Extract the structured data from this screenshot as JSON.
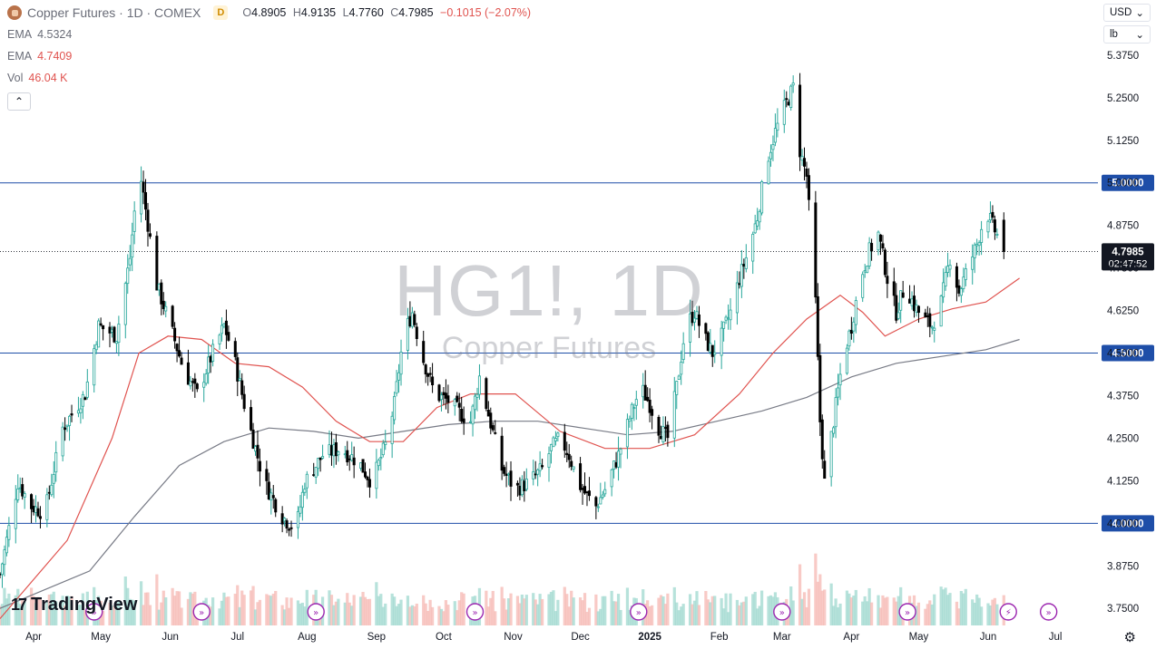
{
  "header": {
    "title": "Copper Futures · 1D · COMEX",
    "badge": "D",
    "ohlc": {
      "o_label": "O",
      "o": "4.8905",
      "h_label": "H",
      "h": "4.9135",
      "l_label": "L",
      "l": "4.7760",
      "c_label": "C",
      "c": "4.7985",
      "change": "−0.1015 (−2.07%)"
    }
  },
  "indicators": [
    {
      "label": "EMA",
      "value": "4.5324",
      "color": "#787b86"
    },
    {
      "label": "EMA",
      "value": "4.7409",
      "color": "#e0534f"
    },
    {
      "label": "Vol",
      "value": "46.04 K",
      "color": "#e0534f"
    }
  ],
  "selectors": {
    "currency": "USD",
    "unit": "lb"
  },
  "watermark": {
    "symbol": "HG1!, 1D",
    "name": "Copper Futures"
  },
  "branding": {
    "logo_text": "TradingView",
    "logo_mark": "17"
  },
  "colors": {
    "up": "#26a69a",
    "down": "#000000",
    "ema50": "#e0534f",
    "ema200": "#787b86",
    "hline": "#1e4ea8",
    "vol_up": "#9fd8cf",
    "vol_down": "#f5b8b3"
  },
  "chart_data": {
    "type": "candlestick",
    "symbol": "HG1!",
    "interval": "1D",
    "y_axis": {
      "ticks": [
        3.75,
        3.875,
        4.0,
        4.125,
        4.25,
        4.375,
        4.5,
        4.625,
        4.75,
        4.875,
        5.0,
        5.125,
        5.25,
        5.375
      ],
      "tick_labels": [
        "3.7500",
        "3.8750",
        "4.0000",
        "4.1250",
        "4.2500",
        "4.3750",
        "4.5000",
        "4.6250",
        "4.7500",
        "4.8750",
        "5.0000",
        "5.1250",
        "5.2500",
        "5.3750"
      ],
      "range": [
        3.7,
        5.42
      ]
    },
    "x_axis": {
      "labels": [
        "Apr",
        "May",
        "Jun",
        "Jul",
        "Aug",
        "Sep",
        "Oct",
        "Nov",
        "Dec",
        "2025",
        "Feb",
        "Mar",
        "Apr",
        "May",
        "Jun",
        "Jul"
      ],
      "label_days": [
        15,
        45,
        76,
        106,
        137,
        168,
        198,
        229,
        259,
        290,
        321,
        349,
        380,
        410,
        441,
        471
      ]
    },
    "horizontal_lines": [
      {
        "price": 5.0,
        "label": "5.0000"
      },
      {
        "price": 4.5,
        "label": "4.5000"
      },
      {
        "price": 4.0,
        "label": "4.0000"
      }
    ],
    "last_price": {
      "price": 4.7985,
      "label": "4.7985",
      "countdown": "02:47:52"
    },
    "ema_fast": [
      [
        0,
        3.72
      ],
      [
        30,
        3.95
      ],
      [
        50,
        4.25
      ],
      [
        62,
        4.5
      ],
      [
        75,
        4.55
      ],
      [
        90,
        4.54
      ],
      [
        105,
        4.47
      ],
      [
        120,
        4.46
      ],
      [
        135,
        4.4
      ],
      [
        150,
        4.3
      ],
      [
        165,
        4.24
      ],
      [
        180,
        4.24
      ],
      [
        195,
        4.34
      ],
      [
        210,
        4.38
      ],
      [
        230,
        4.38
      ],
      [
        250,
        4.27
      ],
      [
        270,
        4.22
      ],
      [
        290,
        4.22
      ],
      [
        310,
        4.26
      ],
      [
        330,
        4.38
      ],
      [
        345,
        4.5
      ],
      [
        360,
        4.6
      ],
      [
        375,
        4.67
      ],
      [
        385,
        4.62
      ],
      [
        395,
        4.55
      ],
      [
        410,
        4.6
      ],
      [
        425,
        4.63
      ],
      [
        440,
        4.65
      ],
      [
        455,
        4.72
      ]
    ],
    "ema_slow": [
      [
        0,
        3.75
      ],
      [
        40,
        3.86
      ],
      [
        60,
        4.02
      ],
      [
        80,
        4.17
      ],
      [
        100,
        4.24
      ],
      [
        120,
        4.28
      ],
      [
        140,
        4.27
      ],
      [
        160,
        4.25
      ],
      [
        180,
        4.27
      ],
      [
        200,
        4.29
      ],
      [
        220,
        4.3
      ],
      [
        240,
        4.3
      ],
      [
        260,
        4.28
      ],
      [
        280,
        4.26
      ],
      [
        300,
        4.27
      ],
      [
        320,
        4.3
      ],
      [
        340,
        4.33
      ],
      [
        360,
        4.37
      ],
      [
        380,
        4.43
      ],
      [
        400,
        4.47
      ],
      [
        420,
        4.49
      ],
      [
        440,
        4.51
      ],
      [
        455,
        4.54
      ]
    ],
    "anchors": [
      [
        0,
        3.85
      ],
      [
        8,
        4.12
      ],
      [
        14,
        4.05
      ],
      [
        20,
        4.03
      ],
      [
        28,
        4.28
      ],
      [
        38,
        4.38
      ],
      [
        44,
        4.58
      ],
      [
        52,
        4.55
      ],
      [
        58,
        4.78
      ],
      [
        62,
        5.05
      ],
      [
        66,
        4.88
      ],
      [
        70,
        4.7
      ],
      [
        76,
        4.58
      ],
      [
        82,
        4.45
      ],
      [
        88,
        4.38
      ],
      [
        96,
        4.52
      ],
      [
        100,
        4.58
      ],
      [
        104,
        4.5
      ],
      [
        110,
        4.32
      ],
      [
        118,
        4.12
      ],
      [
        126,
        4.02
      ],
      [
        132,
        3.98
      ],
      [
        136,
        4.12
      ],
      [
        144,
        4.2
      ],
      [
        152,
        4.22
      ],
      [
        160,
        4.18
      ],
      [
        166,
        4.12
      ],
      [
        172,
        4.23
      ],
      [
        176,
        4.35
      ],
      [
        180,
        4.55
      ],
      [
        184,
        4.62
      ],
      [
        188,
        4.5
      ],
      [
        194,
        4.38
      ],
      [
        200,
        4.36
      ],
      [
        206,
        4.32
      ],
      [
        210,
        4.3
      ],
      [
        214,
        4.43
      ],
      [
        218,
        4.32
      ],
      [
        224,
        4.16
      ],
      [
        230,
        4.1
      ],
      [
        236,
        4.12
      ],
      [
        242,
        4.16
      ],
      [
        246,
        4.22
      ],
      [
        250,
        4.25
      ],
      [
        254,
        4.2
      ],
      [
        258,
        4.12
      ],
      [
        262,
        4.08
      ],
      [
        266,
        4.05
      ],
      [
        270,
        4.1
      ],
      [
        276,
        4.2
      ],
      [
        282,
        4.33
      ],
      [
        286,
        4.4
      ],
      [
        290,
        4.35
      ],
      [
        294,
        4.28
      ],
      [
        298,
        4.25
      ],
      [
        302,
        4.4
      ],
      [
        306,
        4.58
      ],
      [
        310,
        4.62
      ],
      [
        314,
        4.55
      ],
      [
        318,
        4.5
      ],
      [
        322,
        4.55
      ],
      [
        326,
        4.62
      ],
      [
        330,
        4.72
      ],
      [
        334,
        4.8
      ],
      [
        338,
        4.9
      ],
      [
        342,
        5.06
      ],
      [
        346,
        5.15
      ],
      [
        350,
        5.22
      ],
      [
        354,
        5.28
      ],
      [
        356,
        5.12
      ],
      [
        360,
        5.02
      ],
      [
        364,
        4.65
      ],
      [
        366,
        4.3
      ],
      [
        368,
        4.12
      ],
      [
        372,
        4.3
      ],
      [
        376,
        4.48
      ],
      [
        380,
        4.58
      ],
      [
        384,
        4.72
      ],
      [
        388,
        4.8
      ],
      [
        392,
        4.85
      ],
      [
        396,
        4.72
      ],
      [
        400,
        4.62
      ],
      [
        404,
        4.7
      ],
      [
        408,
        4.64
      ],
      [
        412,
        4.6
      ],
      [
        416,
        4.58
      ],
      [
        420,
        4.65
      ],
      [
        424,
        4.78
      ],
      [
        428,
        4.68
      ],
      [
        432,
        4.75
      ],
      [
        436,
        4.82
      ],
      [
        440,
        4.92
      ],
      [
        444,
        4.86
      ],
      [
        448,
        4.8
      ]
    ],
    "volume": {
      "typical_peak": "~2x average in late May 2024 and early Apr 2025"
    }
  }
}
